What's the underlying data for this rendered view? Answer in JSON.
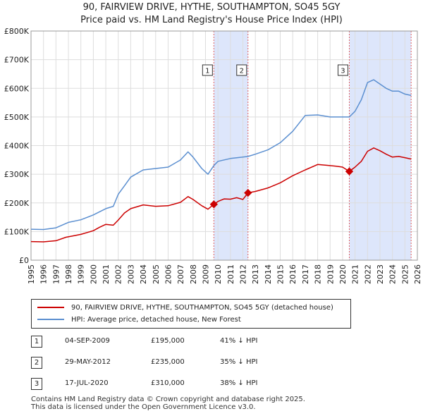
{
  "title": {
    "line1": "90, FAIRVIEW DRIVE, HYTHE, SOUTHAMPTON, SO45 5GY",
    "line2": "Price paid vs. HM Land Registry's House Price Index (HPI)"
  },
  "legend": {
    "property": "90, FAIRVIEW DRIVE, HYTHE, SOUTHAMPTON, SO45 5GY (detached house)",
    "hpi": "HPI: Average price, detached house, New Forest"
  },
  "transactions": [
    {
      "num": "1",
      "date": "04-SEP-2009",
      "price": "£195,000",
      "hpi": "41% ↓ HPI"
    },
    {
      "num": "2",
      "date": "29-MAY-2012",
      "price": "£235,000",
      "hpi": "35% ↓ HPI"
    },
    {
      "num": "3",
      "date": "17-JUL-2020",
      "price": "£310,000",
      "hpi": "38% ↓ HPI"
    }
  ],
  "footer": {
    "line1": "Contains HM Land Registry data © Crown copyright and database right 2025.",
    "line2": "This data is licensed under the Open Government Licence v3.0."
  },
  "colors": {
    "property": "#cc0000",
    "hpi": "#5b8fd0",
    "shade": "#dde6fb",
    "grid": "#dddddd",
    "vline": "#e06060"
  },
  "chart_data": {
    "type": "line",
    "xlim": [
      1995,
      2026
    ],
    "ylim": [
      0,
      800000
    ],
    "x_ticks": [
      1995,
      1996,
      1997,
      1998,
      1999,
      2000,
      2001,
      2002,
      2003,
      2004,
      2005,
      2006,
      2007,
      2008,
      2009,
      2010,
      2011,
      2012,
      2013,
      2014,
      2015,
      2016,
      2017,
      2018,
      2019,
      2020,
      2021,
      2022,
      2023,
      2024,
      2025,
      2026
    ],
    "y_ticks": [
      {
        "value": 0,
        "label": "£0"
      },
      {
        "value": 100000,
        "label": "£100K"
      },
      {
        "value": 200000,
        "label": "£200K"
      },
      {
        "value": 300000,
        "label": "£300K"
      },
      {
        "value": 400000,
        "label": "£400K"
      },
      {
        "value": 500000,
        "label": "£500K"
      },
      {
        "value": 600000,
        "label": "£600K"
      },
      {
        "value": 700000,
        "label": "£700K"
      },
      {
        "value": 800000,
        "label": "£800K"
      }
    ],
    "series": [
      {
        "name": "90, FAIRVIEW DRIVE, HYTHE, SOUTHAMPTON, SO45 5GY (detached house)",
        "x": [
          1995,
          1996,
          1997,
          1997.8,
          1998.5,
          1999,
          2000,
          2000.5,
          2001,
          2001.6,
          2002,
          2002.5,
          2003,
          2004,
          2005,
          2006,
          2007,
          2007.6,
          2008,
          2008.7,
          2009.2,
          2009.67,
          2010,
          2010.5,
          2011,
          2011.5,
          2012,
          2012.41,
          2013,
          2014,
          2015,
          2016,
          2017,
          2018,
          2019,
          2019.5,
          2020,
          2020.54,
          2021,
          2021.5,
          2022,
          2022.5,
          2023,
          2023.5,
          2024,
          2024.5,
          2025,
          2025.5
        ],
        "values": [
          65000,
          64000,
          68000,
          80000,
          86000,
          90000,
          103000,
          115000,
          125000,
          122000,
          140000,
          165000,
          180000,
          193000,
          188000,
          190000,
          202000,
          222000,
          212000,
          190000,
          178000,
          195000,
          205000,
          214000,
          213000,
          218000,
          212000,
          235000,
          240000,
          252000,
          270000,
          295000,
          315000,
          334000,
          330000,
          328000,
          325000,
          310000,
          325000,
          345000,
          380000,
          392000,
          382000,
          370000,
          360000,
          362000,
          358000,
          353000
        ]
      },
      {
        "name": "HPI: Average price, detached house, New Forest",
        "x": [
          1995,
          1996,
          1997,
          1998,
          1999,
          2000,
          2001,
          2001.6,
          2002,
          2002.5,
          2003,
          2004,
          2005,
          2006,
          2007,
          2007.6,
          2008,
          2008.7,
          2009.2,
          2009.67,
          2010,
          2011,
          2012,
          2012.41,
          2013,
          2014,
          2015,
          2016,
          2017,
          2018,
          2019,
          2020,
          2020.54,
          2021,
          2021.5,
          2022,
          2022.5,
          2023,
          2023.5,
          2024,
          2024.5,
          2025,
          2025.5
        ],
        "values": [
          108000,
          107000,
          113000,
          132000,
          141000,
          158000,
          180000,
          188000,
          230000,
          260000,
          290000,
          315000,
          320000,
          325000,
          350000,
          378000,
          360000,
          320000,
          300000,
          330000,
          345000,
          355000,
          360000,
          362000,
          370000,
          385000,
          410000,
          450000,
          505000,
          507000,
          500000,
          500000,
          500000,
          520000,
          560000,
          620000,
          630000,
          615000,
          600000,
          590000,
          590000,
          580000,
          575000
        ]
      }
    ],
    "shaded_ranges": [
      [
        2009.67,
        2012.41
      ],
      [
        2020.54,
        2025.5
      ]
    ],
    "sale_markers": [
      {
        "label": "1",
        "x": 2009.67,
        "y": 195000
      },
      {
        "label": "2",
        "x": 2012.41,
        "y": 235000
      },
      {
        "label": "3",
        "x": 2020.54,
        "y": 310000
      }
    ],
    "vertical_lines": [
      2009.67,
      2012.41,
      2020.54,
      2025.5
    ]
  }
}
